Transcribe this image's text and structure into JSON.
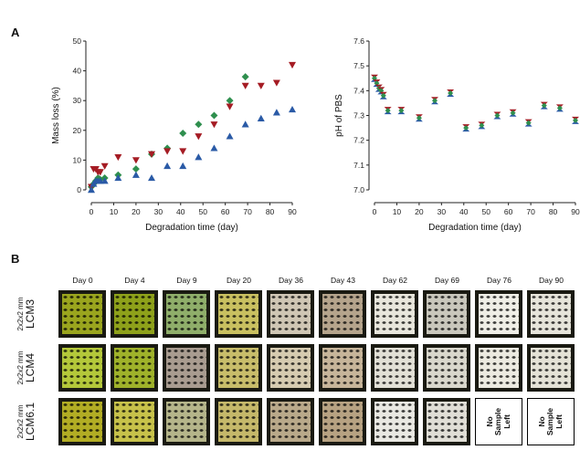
{
  "panel_a_letter": "A",
  "panel_b_letter": "B",
  "chart_data": [
    {
      "type": "scatter",
      "title": "",
      "xlabel": "Degradation time (day)",
      "ylabel": "Mass loss (%)",
      "xlim": [
        0,
        90
      ],
      "ylim": [
        0,
        50
      ],
      "xticks": [
        0,
        10,
        20,
        30,
        40,
        50,
        60,
        70,
        80,
        90
      ],
      "yticks": [
        0,
        10,
        20,
        30,
        40,
        50
      ],
      "grid": false,
      "series": [
        {
          "color": "#2f8f4e",
          "marker": "diamond",
          "x": [
            0,
            1,
            2,
            3,
            4,
            6,
            12,
            20,
            27,
            34,
            41,
            48,
            55,
            62,
            69
          ],
          "y": [
            1,
            2,
            3,
            4,
            3.5,
            4,
            5,
            7,
            12,
            14,
            19,
            22,
            25,
            30,
            38
          ]
        },
        {
          "color": "#a51c24",
          "marker": "triangle-down",
          "x": [
            0,
            1,
            2,
            3,
            4,
            6,
            12,
            20,
            27,
            34,
            41,
            48,
            55,
            62,
            69,
            76,
            83,
            90
          ],
          "y": [
            1,
            7,
            7,
            6,
            6,
            8,
            11,
            10,
            12,
            13,
            13,
            18,
            22,
            28,
            35,
            35,
            36,
            42
          ]
        },
        {
          "color": "#2a5aa6",
          "marker": "triangle-up",
          "x": [
            0,
            1,
            2,
            3,
            4,
            6,
            12,
            20,
            27,
            34,
            41,
            48,
            55,
            62,
            69,
            76,
            83,
            90
          ],
          "y": [
            0,
            2,
            3,
            3,
            3,
            3,
            4,
            5,
            4,
            8,
            8,
            11,
            14,
            18,
            22,
            24,
            26,
            27
          ]
        }
      ]
    },
    {
      "type": "scatter",
      "title": "",
      "xlabel": "Degradation time (day)",
      "ylabel": "pH of PBS",
      "xlim": [
        0,
        90
      ],
      "ylim": [
        7.0,
        7.6
      ],
      "xticks": [
        0,
        10,
        20,
        30,
        40,
        50,
        60,
        70,
        80,
        90
      ],
      "yticks": [
        7.0,
        7.1,
        7.2,
        7.3,
        7.4,
        7.5,
        7.6
      ],
      "ytick_labels": [
        "7.0",
        "7.1",
        "7.2",
        "7.3",
        "7.4",
        "7.5",
        "7.6"
      ],
      "grid": false,
      "marker_colors": [
        "#2f8f4e",
        "#a51c24",
        "#2a5aa6"
      ],
      "x": [
        0,
        1,
        2,
        3,
        4,
        6,
        12,
        20,
        27,
        34,
        41,
        48,
        55,
        62,
        69,
        76,
        83,
        90
      ],
      "y": [
        7.45,
        7.43,
        7.41,
        7.4,
        7.38,
        7.32,
        7.32,
        7.29,
        7.36,
        7.39,
        7.25,
        7.26,
        7.3,
        7.31,
        7.27,
        7.34,
        7.33,
        7.28
      ]
    }
  ],
  "panel_b": {
    "days": [
      "Day 0",
      "Day 4",
      "Day 9",
      "Day 20",
      "Day 36",
      "Day 43",
      "Day 62",
      "Day 69",
      "Day 76",
      "Day 90"
    ],
    "rows": [
      {
        "name": "LCM3",
        "size": "2x2x2 mm",
        "tiles": [
          {
            "color": "#9aa51e"
          },
          {
            "color": "#8ea11a"
          },
          {
            "color": "#8fae6a"
          },
          {
            "color": "#c9c060"
          },
          {
            "color": "#cfc6b4"
          },
          {
            "color": "#b5a48c"
          },
          {
            "color": "#e8e6dc"
          },
          {
            "color": "#c9c7bc"
          },
          {
            "color": "#efeee6"
          },
          {
            "color": "#e6e4da"
          }
        ]
      },
      {
        "name": "LCM4",
        "size": "2x2x2 mm",
        "tiles": [
          {
            "color": "#b4c83a"
          },
          {
            "color": "#9fb22a"
          },
          {
            "color": "#a99c90"
          },
          {
            "color": "#c8bd6a"
          },
          {
            "color": "#d6cbb0"
          },
          {
            "color": "#c7b59a"
          },
          {
            "color": "#e2e0d6"
          },
          {
            "color": "#d9d7cc"
          },
          {
            "color": "#eceae0"
          },
          {
            "color": "#e4e2d6"
          }
        ]
      },
      {
        "name": "LCM6.1",
        "size": "2x2x2 mm",
        "tiles": [
          {
            "color": "#b2ad24"
          },
          {
            "color": "#c7c24a"
          },
          {
            "color": "#b5b58a"
          },
          {
            "color": "#c5b86a"
          },
          {
            "color": "#b9a98a"
          },
          {
            "color": "#b7a282"
          },
          {
            "color": "#e9e8e2"
          },
          {
            "color": "#e0ded6"
          },
          {
            "empty": true,
            "label": [
              "No",
              "Sample",
              "Left"
            ]
          },
          {
            "empty": true,
            "label": [
              "No",
              "Sample",
              "Left"
            ]
          }
        ]
      }
    ]
  }
}
